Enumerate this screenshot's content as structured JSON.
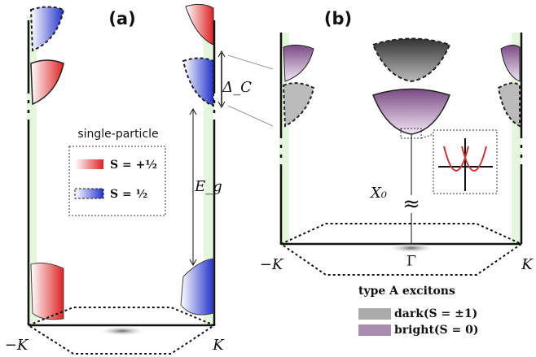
{
  "panel_a": {
    "label": "(a)",
    "legend_title": "single-particle",
    "legend_items": [
      "S = +½",
      "S = ½"
    ],
    "gap_spin": "Δ_C",
    "gap_band": "E_g",
    "valley_left": "−K",
    "valley_right": "K"
  },
  "panel_b": {
    "label": "(b)",
    "exciton": "X₀",
    "approx": "≈",
    "valley_left": "−K",
    "valley_right": "K",
    "center": "Γ"
  },
  "legend": {
    "title": "type A excitons",
    "items": [
      "dark(S = ±1)",
      "bright(S = 0)"
    ]
  }
}
